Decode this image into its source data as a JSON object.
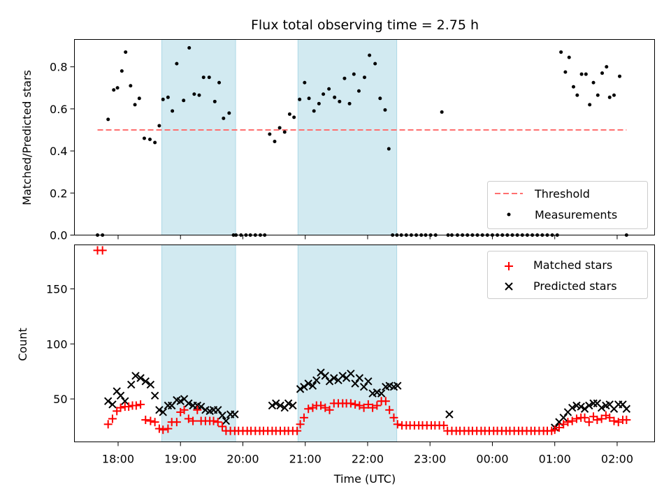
{
  "title": "Flux total observing time = 2.75 h",
  "xlabel": "Time (UTC)",
  "x_ticks": [
    "18:00",
    "19:00",
    "20:00",
    "21:00",
    "22:00",
    "23:00",
    "00:00",
    "01:00",
    "02:00"
  ],
  "colors": {
    "shade": "#add8e6",
    "threshold": "#ff6f6f",
    "matched": "#ff0000",
    "predicted": "#000000",
    "measurements": "#000000"
  },
  "chart_data": [
    {
      "type": "scatter",
      "panel": "top",
      "ylabel": "Matched/Predicted stars",
      "ylim": [
        0,
        0.93
      ],
      "y_ticks": [
        "0.0",
        "0.2",
        "0.4",
        "0.6",
        "0.8"
      ],
      "xlim_hours": [
        17.3,
        26.6
      ],
      "shaded_intervals": [
        [
          "18:42",
          "19:53"
        ],
        [
          "20:53",
          "22:28"
        ]
      ],
      "legend_position": "lower right",
      "threshold": {
        "name": "Threshold",
        "value": 0.5,
        "x_range": [
          17.67,
          26.15
        ]
      },
      "measurements": {
        "name": "Measurements",
        "x": [
          17.67,
          17.75,
          17.84,
          17.93,
          17.99,
          18.06,
          18.12,
          18.2,
          18.27,
          18.34,
          18.42,
          18.51,
          18.59,
          18.66,
          18.72,
          18.8,
          18.87,
          18.94,
          19.05,
          19.14,
          19.22,
          19.3,
          19.37,
          19.46,
          19.55,
          19.62,
          19.69,
          19.78,
          19.85,
          19.89,
          19.97,
          20.05,
          20.12,
          20.2,
          20.28,
          20.35,
          20.43,
          20.51,
          20.59,
          20.67,
          20.75,
          20.82,
          20.91,
          20.99,
          21.06,
          21.14,
          21.22,
          21.29,
          21.38,
          21.47,
          21.55,
          21.63,
          21.71,
          21.78,
          21.86,
          21.95,
          22.03,
          22.12,
          22.2,
          22.28,
          22.34,
          22.4,
          22.47,
          22.54,
          22.62,
          22.7,
          22.78,
          22.86,
          22.93,
          23.01,
          23.09,
          23.19,
          23.29,
          23.35,
          23.44,
          23.52,
          23.6,
          23.68,
          23.76,
          23.84,
          23.92,
          24.0,
          24.08,
          24.16,
          24.24,
          24.32,
          24.4,
          24.48,
          24.56,
          24.64,
          24.72,
          24.8,
          24.88,
          24.96,
          25.04,
          25.1,
          25.17,
          25.23,
          25.3,
          25.36,
          25.43,
          25.5,
          25.56,
          25.62,
          25.69,
          25.76,
          25.83,
          25.88,
          25.95,
          26.04,
          26.15
        ],
        "y": [
          0.0,
          0.0,
          0.55,
          0.69,
          0.7,
          0.78,
          0.87,
          0.71,
          0.62,
          0.65,
          0.46,
          0.455,
          0.44,
          0.52,
          0.645,
          0.655,
          0.59,
          0.815,
          0.64,
          0.89,
          0.67,
          0.665,
          0.75,
          0.75,
          0.635,
          0.725,
          0.555,
          0.58,
          0.0,
          0.0,
          0.0,
          0.0,
          0.0,
          0.0,
          0.0,
          0.0,
          0.48,
          0.445,
          0.51,
          0.49,
          0.575,
          0.56,
          0.645,
          0.725,
          0.65,
          0.59,
          0.625,
          0.67,
          0.695,
          0.655,
          0.635,
          0.745,
          0.625,
          0.765,
          0.685,
          0.75,
          0.855,
          0.815,
          0.65,
          0.595,
          0.41,
          0.0,
          0.0,
          0.0,
          0.0,
          0.0,
          0.0,
          0.0,
          0.0,
          0.0,
          0.0,
          0.585,
          0.0,
          0.0,
          0.0,
          0.0,
          0.0,
          0.0,
          0.0,
          0.0,
          0.0,
          0.0,
          0.0,
          0.0,
          0.0,
          0.0,
          0.0,
          0.0,
          0.0,
          0.0,
          0.0,
          0.0,
          0.0,
          0.0,
          0.0,
          0.87,
          0.775,
          0.845,
          0.705,
          0.665,
          0.765,
          0.765,
          0.62,
          0.725,
          0.665,
          0.77,
          0.8,
          0.655,
          0.665,
          0.755,
          0.0
        ]
      }
    },
    {
      "type": "scatter",
      "panel": "bottom",
      "ylabel": "Count",
      "ylim": [
        11,
        190
      ],
      "y_ticks": [
        "50",
        "100",
        "150"
      ],
      "xlim_hours": [
        17.3,
        26.6
      ],
      "shaded_intervals": [
        [
          "18:42",
          "19:53"
        ],
        [
          "20:53",
          "22:28"
        ]
      ],
      "legend_position": "upper right",
      "series": [
        {
          "name": "Matched stars",
          "marker": "+",
          "points": [
            [
              17.67,
              185
            ],
            [
              17.75,
              185
            ],
            [
              17.84,
              27
            ],
            [
              17.91,
              32
            ],
            [
              17.98,
              39
            ],
            [
              18.04,
              42
            ],
            [
              18.11,
              43
            ],
            [
              18.17,
              43
            ],
            [
              18.23,
              44
            ],
            [
              18.29,
              44
            ],
            [
              18.36,
              45
            ],
            [
              18.44,
              31
            ],
            [
              18.52,
              30
            ],
            [
              18.59,
              29
            ],
            [
              18.66,
              23
            ],
            [
              18.72,
              22
            ],
            [
              18.8,
              23
            ],
            [
              18.86,
              29
            ],
            [
              18.94,
              29
            ],
            [
              19.0,
              38
            ],
            [
              19.06,
              40
            ],
            [
              19.13,
              32
            ],
            [
              19.2,
              30
            ],
            [
              19.27,
              40
            ],
            [
              19.33,
              30
            ],
            [
              19.4,
              30
            ],
            [
              19.47,
              30
            ],
            [
              19.53,
              30
            ],
            [
              19.6,
              29
            ],
            [
              19.67,
              25
            ],
            [
              19.73,
              21
            ],
            [
              19.8,
              21
            ],
            [
              19.87,
              21
            ],
            [
              19.93,
              21
            ],
            [
              20.0,
              21
            ],
            [
              20.07,
              21
            ],
            [
              20.13,
              21
            ],
            [
              20.2,
              21
            ],
            [
              20.27,
              21
            ],
            [
              20.33,
              21
            ],
            [
              20.4,
              21
            ],
            [
              20.47,
              21
            ],
            [
              20.53,
              21
            ],
            [
              20.6,
              21
            ],
            [
              20.67,
              21
            ],
            [
              20.73,
              21
            ],
            [
              20.8,
              21
            ],
            [
              20.87,
              21
            ],
            [
              20.92,
              27
            ],
            [
              20.98,
              33
            ],
            [
              21.05,
              41
            ],
            [
              21.12,
              42
            ],
            [
              21.18,
              44
            ],
            [
              21.25,
              44
            ],
            [
              21.32,
              42
            ],
            [
              21.39,
              40
            ],
            [
              21.46,
              46
            ],
            [
              21.53,
              46
            ],
            [
              21.6,
              46
            ],
            [
              21.66,
              46
            ],
            [
              21.73,
              46
            ],
            [
              21.8,
              45
            ],
            [
              21.87,
              44
            ],
            [
              21.94,
              42
            ],
            [
              22.01,
              45
            ],
            [
              22.08,
              42
            ],
            [
              22.15,
              44
            ],
            [
              22.22,
              48
            ],
            [
              22.29,
              48
            ],
            [
              22.35,
              40
            ],
            [
              22.42,
              33
            ],
            [
              22.48,
              27
            ],
            [
              22.55,
              26
            ],
            [
              22.62,
              26
            ],
            [
              22.68,
              26
            ],
            [
              22.75,
              26
            ],
            [
              22.82,
              26
            ],
            [
              22.88,
              26
            ],
            [
              22.95,
              26
            ],
            [
              23.02,
              26
            ],
            [
              23.08,
              26
            ],
            [
              23.15,
              26
            ],
            [
              23.22,
              26
            ],
            [
              23.28,
              21
            ],
            [
              23.35,
              21
            ],
            [
              23.42,
              21
            ],
            [
              23.48,
              21
            ],
            [
              23.55,
              21
            ],
            [
              23.62,
              21
            ],
            [
              23.68,
              21
            ],
            [
              23.75,
              21
            ],
            [
              23.82,
              21
            ],
            [
              23.88,
              21
            ],
            [
              23.95,
              21
            ],
            [
              24.02,
              21
            ],
            [
              24.08,
              21
            ],
            [
              24.15,
              21
            ],
            [
              24.22,
              21
            ],
            [
              24.28,
              21
            ],
            [
              24.35,
              21
            ],
            [
              24.42,
              21
            ],
            [
              24.48,
              21
            ],
            [
              24.55,
              21
            ],
            [
              24.62,
              21
            ],
            [
              24.68,
              21
            ],
            [
              24.75,
              21
            ],
            [
              24.82,
              21
            ],
            [
              24.88,
              21
            ],
            [
              24.95,
              21
            ],
            [
              25.0,
              22
            ],
            [
              25.07,
              24
            ],
            [
              25.14,
              27
            ],
            [
              25.21,
              29
            ],
            [
              25.28,
              30
            ],
            [
              25.35,
              32
            ],
            [
              25.42,
              33
            ],
            [
              25.48,
              33
            ],
            [
              25.55,
              29
            ],
            [
              25.62,
              34
            ],
            [
              25.68,
              31
            ],
            [
              25.75,
              32
            ],
            [
              25.82,
              35
            ],
            [
              25.88,
              33
            ],
            [
              25.95,
              30
            ],
            [
              26.02,
              29
            ],
            [
              26.09,
              31
            ],
            [
              26.15,
              31
            ]
          ]
        },
        {
          "name": "Predicted stars",
          "marker": "x",
          "points": [
            [
              17.84,
              48
            ],
            [
              17.91,
              45
            ],
            [
              17.98,
              57
            ],
            [
              18.04,
              53
            ],
            [
              18.11,
              48
            ],
            [
              18.21,
              63
            ],
            [
              18.28,
              71
            ],
            [
              18.36,
              69
            ],
            [
              18.44,
              66
            ],
            [
              18.52,
              63
            ],
            [
              18.59,
              53
            ],
            [
              18.66,
              40
            ],
            [
              18.72,
              38
            ],
            [
              18.8,
              44
            ],
            [
              18.86,
              44
            ],
            [
              18.94,
              49
            ],
            [
              19.0,
              48
            ],
            [
              19.06,
              50
            ],
            [
              19.13,
              46
            ],
            [
              19.2,
              44
            ],
            [
              19.27,
              44
            ],
            [
              19.33,
              43
            ],
            [
              19.4,
              40
            ],
            [
              19.47,
              39
            ],
            [
              19.53,
              40
            ],
            [
              19.6,
              40
            ],
            [
              19.67,
              35
            ],
            [
              19.73,
              30
            ],
            [
              19.8,
              36
            ],
            [
              19.87,
              36
            ],
            [
              20.47,
              44
            ],
            [
              20.53,
              46
            ],
            [
              20.6,
              44
            ],
            [
              20.67,
              42
            ],
            [
              20.73,
              46
            ],
            [
              20.8,
              44
            ],
            [
              20.92,
              59
            ],
            [
              20.98,
              61
            ],
            [
              21.05,
              64
            ],
            [
              21.12,
              62
            ],
            [
              21.18,
              67
            ],
            [
              21.25,
              74
            ],
            [
              21.32,
              71
            ],
            [
              21.39,
              66
            ],
            [
              21.46,
              69
            ],
            [
              21.53,
              67
            ],
            [
              21.6,
              71
            ],
            [
              21.66,
              69
            ],
            [
              21.73,
              73
            ],
            [
              21.8,
              64
            ],
            [
              21.87,
              69
            ],
            [
              21.94,
              61
            ],
            [
              22.01,
              66
            ],
            [
              22.08,
              55
            ],
            [
              22.15,
              56
            ],
            [
              22.22,
              55
            ],
            [
              22.29,
              61
            ],
            [
              22.35,
              62
            ],
            [
              22.42,
              61
            ],
            [
              22.48,
              62
            ],
            [
              23.31,
              36
            ],
            [
              25.0,
              24
            ],
            [
              25.07,
              29
            ],
            [
              25.14,
              33
            ],
            [
              25.21,
              38
            ],
            [
              25.28,
              42
            ],
            [
              25.35,
              44
            ],
            [
              25.42,
              43
            ],
            [
              25.48,
              41
            ],
            [
              25.55,
              44
            ],
            [
              25.62,
              46
            ],
            [
              25.68,
              46
            ],
            [
              25.75,
              42
            ],
            [
              25.82,
              44
            ],
            [
              25.88,
              45
            ],
            [
              25.95,
              41
            ],
            [
              26.02,
              45
            ],
            [
              26.09,
              45
            ],
            [
              26.15,
              41
            ]
          ]
        }
      ]
    }
  ]
}
